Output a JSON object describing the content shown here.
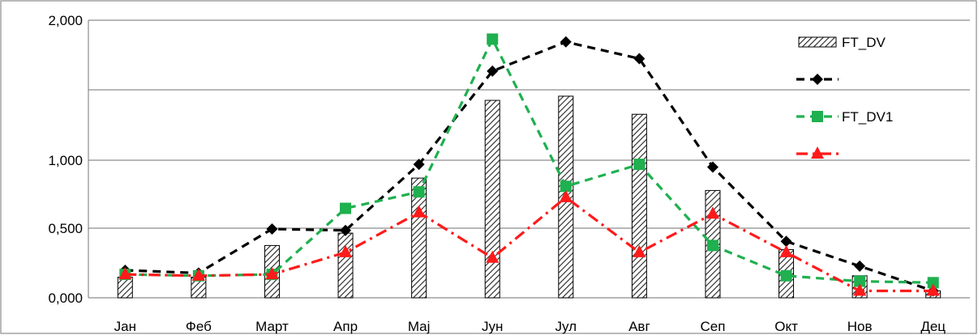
{
  "chart_data": {
    "type": "bar",
    "categories": [
      "Јан",
      "Феб",
      "Март",
      "Апр",
      "Мај",
      "Јун",
      "Јул",
      "Авг",
      "Сеп",
      "Окт",
      "Нов",
      "Дец"
    ],
    "y_ticks": [
      "0,000",
      "0,500",
      "1,000",
      "2,000"
    ],
    "ylim": [
      0,
      2
    ],
    "grid": true,
    "legend_position": "top-right",
    "series": [
      {
        "name": "FT_DV",
        "kind": "bar",
        "pattern": "diagonal-hatch",
        "values": [
          0.15,
          0.15,
          0.38,
          0.47,
          0.87,
          1.43,
          1.46,
          1.33,
          0.78,
          0.35,
          0.16,
          0.05
        ]
      },
      {
        "name": "",
        "kind": "line",
        "color": "#000000",
        "marker": "diamond",
        "dash": "dashed",
        "values": [
          0.2,
          0.18,
          0.5,
          0.49,
          0.97,
          1.64,
          1.85,
          1.73,
          0.95,
          0.41,
          0.23,
          0.05
        ]
      },
      {
        "name": "FT_DV1",
        "kind": "line",
        "color": "#1fb04f",
        "marker": "square",
        "dash": "dashed",
        "values": [
          0.17,
          0.16,
          0.17,
          0.65,
          0.77,
          1.87,
          0.81,
          0.97,
          0.38,
          0.16,
          0.12,
          0.11
        ]
      },
      {
        "name": "",
        "kind": "line",
        "color": "#ff1a1a",
        "marker": "triangle",
        "dash": "dashdot",
        "values": [
          0.17,
          0.16,
          0.17,
          0.33,
          0.62,
          0.29,
          0.73,
          0.33,
          0.61,
          0.33,
          0.05,
          0.05
        ]
      }
    ]
  }
}
